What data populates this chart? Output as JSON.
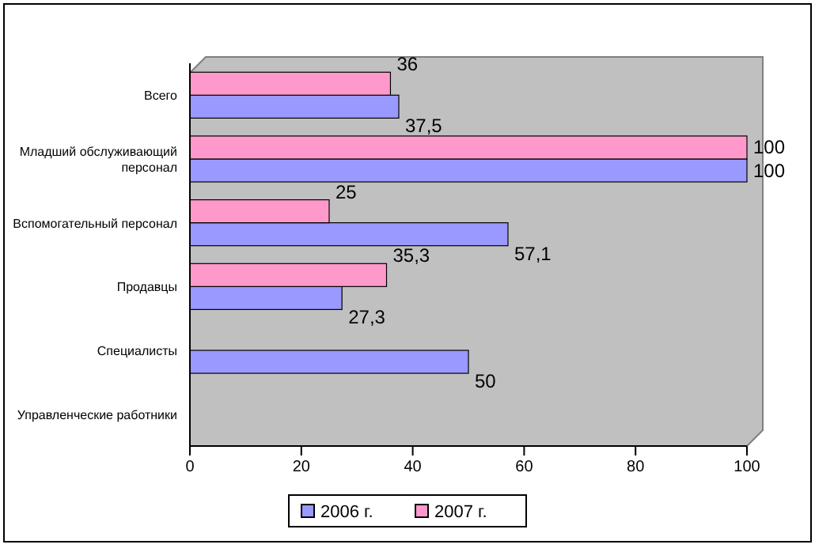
{
  "chart_data": {
    "type": "bar",
    "orientation": "horizontal",
    "categories": [
      "Всего",
      "Младший обслуживающий персонал",
      "Вспомогательный персонал",
      "Продавцы",
      "Специалисты",
      "Управленческие работники"
    ],
    "series": [
      {
        "name": "2006 г.",
        "color": "#9999ff",
        "values": [
          37.5,
          100,
          57.1,
          27.3,
          50,
          0
        ],
        "value_labels": [
          "37,5",
          "100",
          "57,1",
          "27,3",
          "50",
          null
        ]
      },
      {
        "name": "2007 г.",
        "color": "#ff99cc",
        "values": [
          36,
          100,
          25,
          35.3,
          0,
          0
        ],
        "value_labels": [
          "36",
          "100",
          "25",
          "35,3",
          null,
          null
        ]
      }
    ],
    "xlim": [
      0,
      100
    ],
    "xticks": [
      0,
      20,
      40,
      60,
      80,
      100
    ],
    "grid": false,
    "legend": "bottom"
  }
}
